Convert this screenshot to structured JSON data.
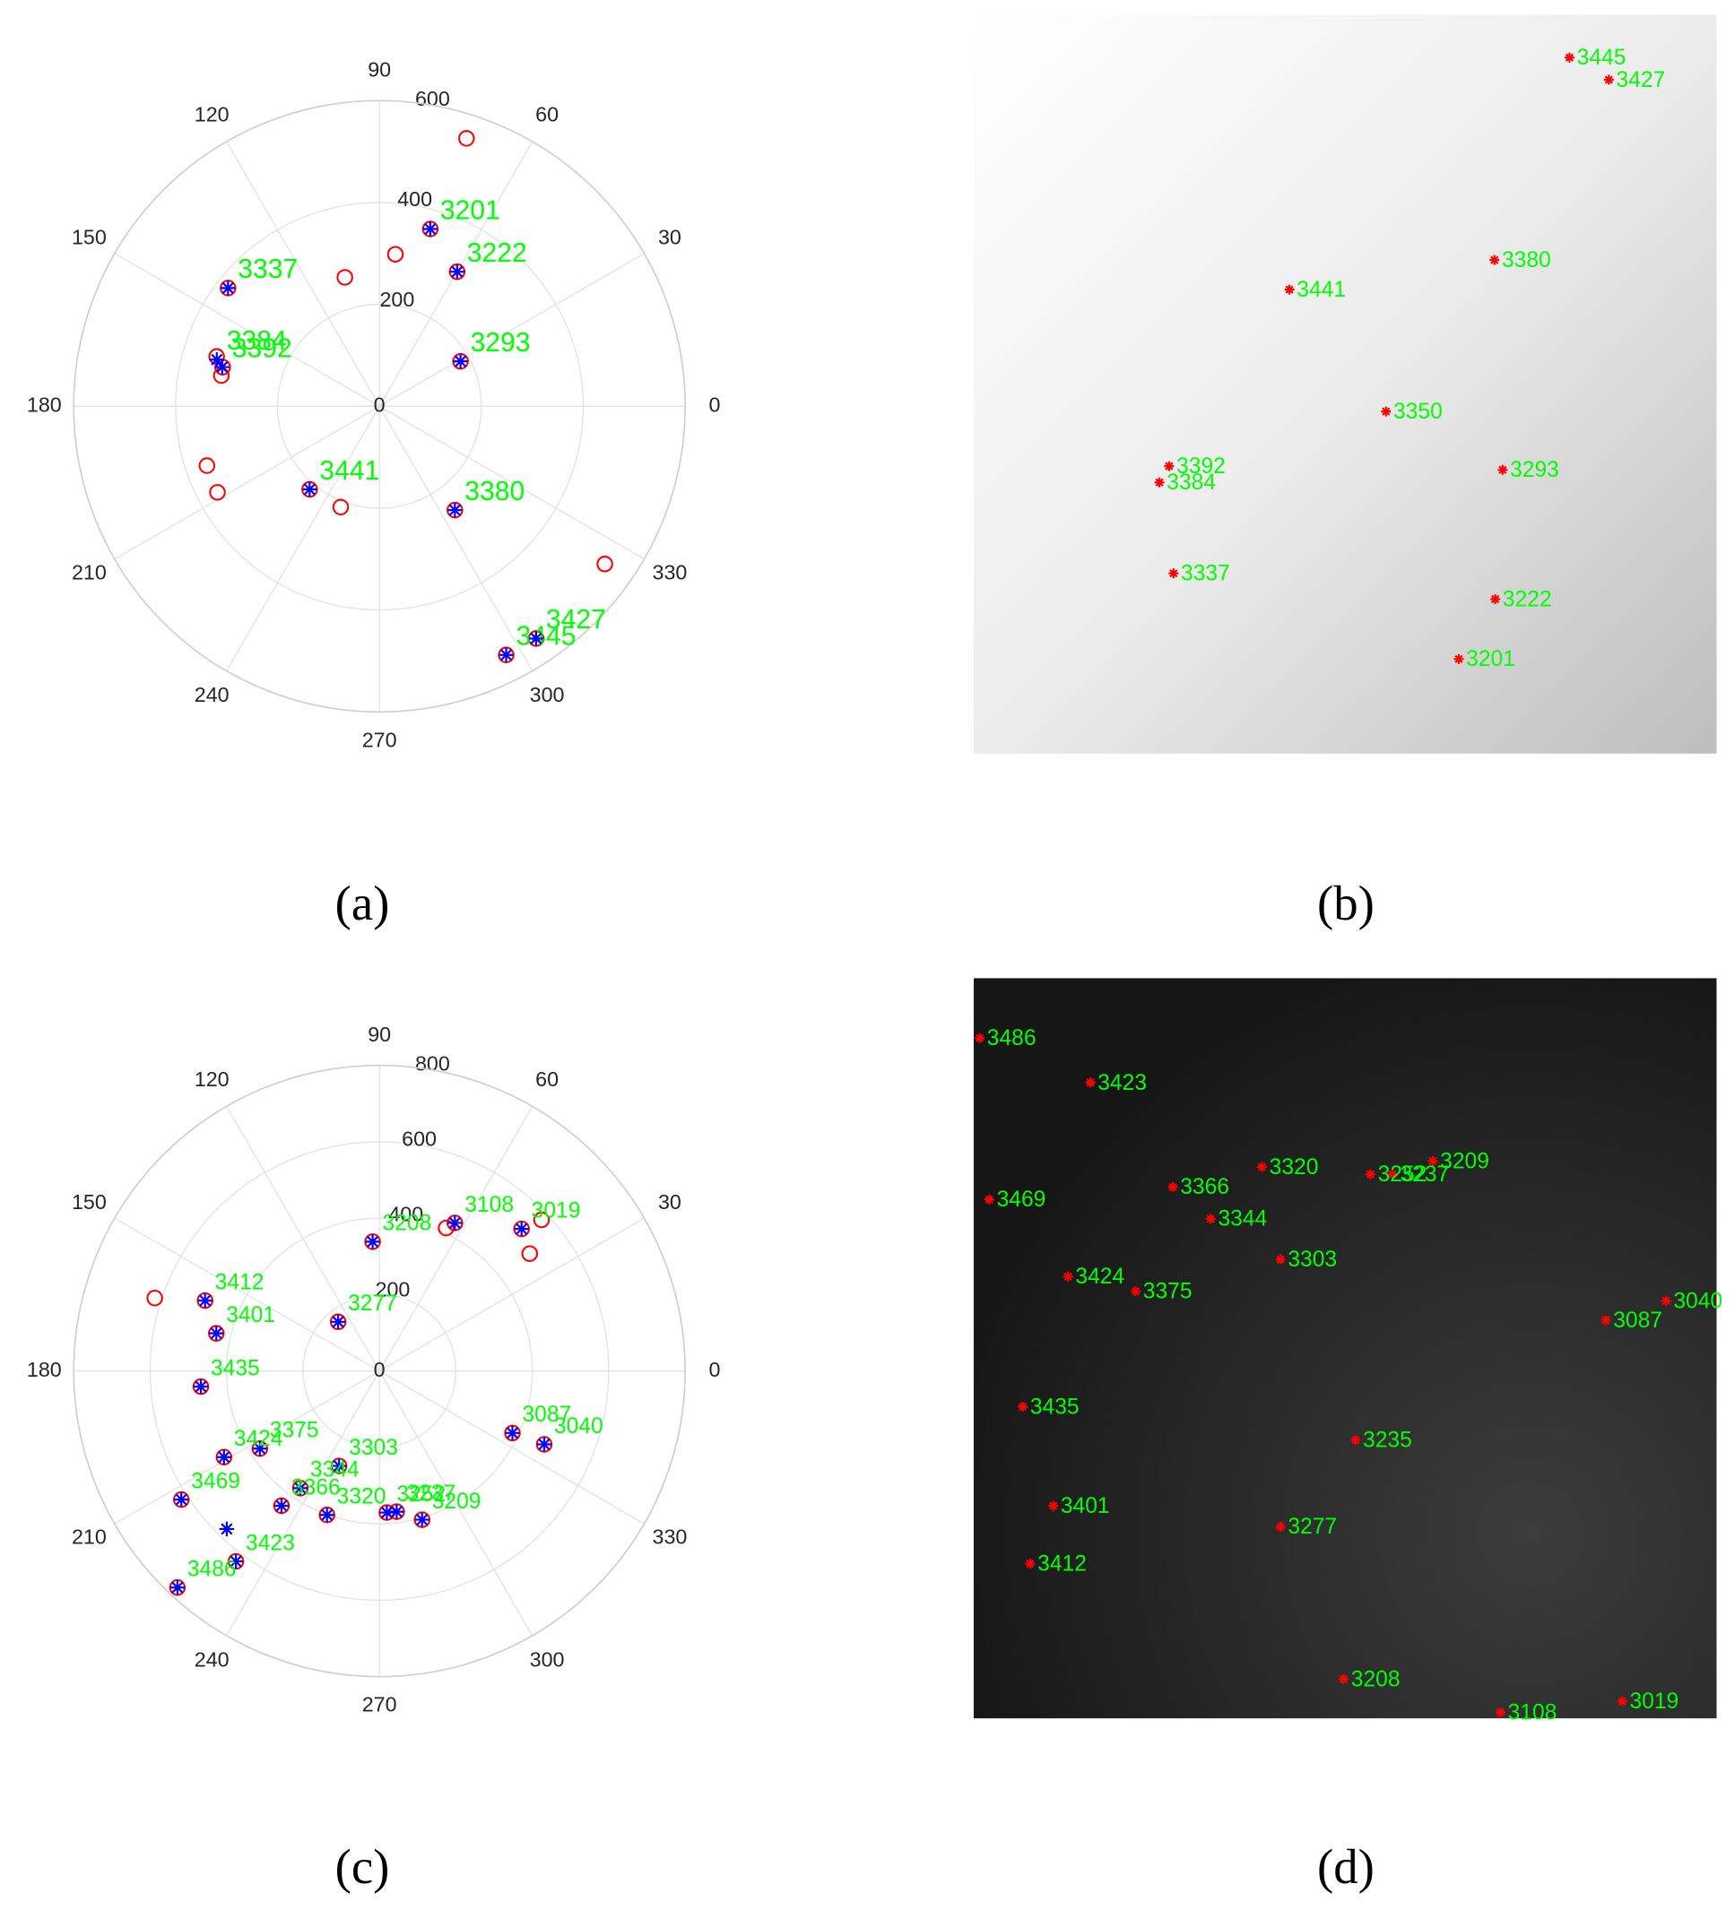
{
  "chart_data": [
    {
      "type": "polar",
      "caption": "(a)",
      "rlim": [
        0,
        600
      ],
      "rticks": [
        0,
        200,
        400,
        600
      ],
      "thetaticks": [
        0,
        30,
        60,
        90,
        120,
        150,
        180,
        210,
        240,
        270,
        300,
        330
      ],
      "grid": true,
      "label_color": "#00ff00",
      "series": [
        {
          "marker": "circle",
          "color": "#ff0000",
          "theta": [
            72,
            74,
            84,
            105,
            60,
            142,
            29,
            163,
            166,
            169,
            199,
            208,
            230,
            249,
            306,
            325,
            297,
            304
          ],
          "r": [
            553,
            362,
            300,
            262,
            305,
            377,
            182,
            334,
            317,
            316,
            358,
            360,
            213,
            212,
            252,
            540,
            548,
            550
          ]
        },
        {
          "marker": "asterisk",
          "color": "#0000ff",
          "theta": [
            74,
            60,
            142,
            29,
            164,
            166,
            230,
            306,
            297,
            304
          ],
          "r": [
            362,
            305,
            377,
            182,
            332,
            318,
            213,
            252,
            548,
            550
          ],
          "labels": [
            "3201",
            "3222",
            "3337",
            "3293",
            "3384",
            "3392",
            "3441",
            "3380",
            "3445",
            "3427"
          ]
        }
      ]
    },
    {
      "type": "image",
      "caption": "(b)",
      "xlim": [
        0,
        1
      ],
      "ylim": [
        1,
        0
      ],
      "background": "light",
      "color": "#ff0000",
      "label_color": "#00ff00",
      "x": [
        0.802,
        0.855,
        0.701,
        0.425,
        0.555,
        0.263,
        0.25,
        0.712,
        0.269,
        0.702,
        0.653
      ],
      "y": [
        0.058,
        0.088,
        0.332,
        0.372,
        0.537,
        0.611,
        0.633,
        0.616,
        0.756,
        0.791,
        0.872
      ],
      "labels": [
        "3445",
        "3427",
        "3380",
        "3441",
        "3350",
        "3392",
        "3384",
        "3293",
        "3337",
        "3222",
        "3201"
      ]
    },
    {
      "type": "polar",
      "caption": "(c)",
      "rlim": [
        0,
        800
      ],
      "rticks": [
        0,
        200,
        400,
        600,
        800
      ],
      "thetaticks": [
        0,
        30,
        60,
        90,
        120,
        150,
        180,
        210,
        240,
        270,
        300,
        330
      ],
      "grid": true,
      "label_color": "#00ff00",
      "series": [
        {
          "marker": "circle",
          "color": "#ff0000",
          "theta": [
            93,
            63,
            45,
            130,
            158,
            167,
            185,
            335,
            336,
            213,
            209,
            247,
            236,
            234,
            250,
            277,
            273,
            286,
            213,
            233,
            227,
            162,
            65,
            43,
            38
          ],
          "r": [
            339,
            435,
            526,
            168,
            492,
            438,
            469,
            384,
            472,
            373,
            465,
            270,
            370,
            436,
            401,
            371,
            371,
            405,
            618,
            624,
            775,
            618,
            413,
            580,
            499
          ]
        },
        {
          "marker": "asterisk",
          "color": "#0000ff",
          "theta": [
            93,
            63,
            45,
            130,
            158,
            167,
            185,
            335,
            336,
            213,
            209,
            247,
            236,
            234,
            250,
            277,
            273,
            286,
            213,
            233,
            227,
            226
          ],
          "r": [
            339,
            435,
            526,
            168,
            492,
            438,
            469,
            384,
            472,
            373,
            465,
            270,
            370,
            436,
            401,
            371,
            371,
            405,
            618,
            624,
            775,
            575
          ],
          "labels": [
            "3208",
            "3108",
            "3019",
            "3277",
            "3412",
            "3401",
            "3435",
            "3087",
            "3040",
            "3375",
            "3424",
            "3303",
            "3344",
            "3366",
            "3320",
            "3237",
            "3252",
            "3209",
            "3469",
            "3423",
            "3486",
            null
          ]
        }
      ]
    },
    {
      "type": "image",
      "caption": "(d)",
      "xlim": [
        0,
        1
      ],
      "ylim": [
        1,
        0
      ],
      "background": "dark",
      "color": "#ff0000",
      "label_color": "#00ff00",
      "x": [
        0.008,
        0.157,
        0.388,
        0.618,
        0.564,
        0.534,
        0.268,
        0.021,
        0.319,
        0.413,
        0.127,
        0.218,
        0.932,
        0.851,
        0.066,
        0.514,
        0.107,
        0.413,
        0.076,
        0.498,
        0.709,
        0.873
      ],
      "y": [
        0.081,
        0.141,
        0.255,
        0.247,
        0.265,
        0.265,
        0.282,
        0.299,
        0.325,
        0.38,
        0.403,
        0.423,
        0.436,
        0.462,
        0.579,
        0.624,
        0.713,
        0.741,
        0.791,
        0.947,
        0.992,
        0.977
      ],
      "labels": [
        "3486",
        "3423",
        "3320",
        "3209",
        "3237",
        "3252",
        "3366",
        "3469",
        "3344",
        "3303",
        "3424",
        "3375",
        "3040",
        "3087",
        "3435",
        "3235",
        "3401",
        "3277",
        "3412",
        "3208",
        "3108",
        "3019"
      ]
    }
  ]
}
